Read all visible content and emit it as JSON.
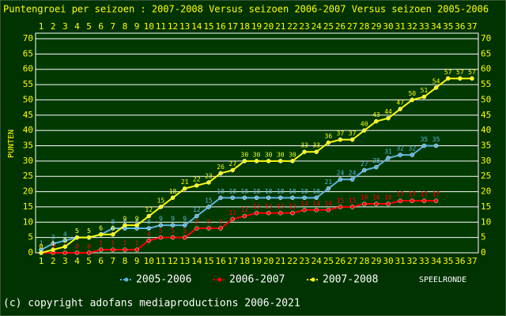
{
  "chart_data": {
    "type": "line",
    "title": "Puntengroei per seizoen : 2007-2008 Versus seizoen 2006-2007 Versus seizoen 2005-2006",
    "y_label": "PUNTEN",
    "x_label": "SPEELRONDE",
    "footer": "(c) copyright adofans mediaproductions 2006-2021",
    "categories": [
      "1",
      "2",
      "3",
      "4",
      "5",
      "6",
      "7",
      "8",
      "9",
      "10",
      "11",
      "12",
      "13",
      "14",
      "15",
      "16",
      "17",
      "18",
      "19",
      "20",
      "21",
      "22",
      "23",
      "24",
      "25",
      "26",
      "27",
      "28",
      "29",
      "30",
      "31",
      "32",
      "33",
      "34",
      "35",
      "36",
      "37"
    ],
    "series": [
      {
        "name": "2005-2006",
        "color": "#5bb4e5",
        "values": [
          1,
          3,
          4,
          5,
          5,
          6,
          8,
          8,
          8,
          8,
          9,
          9,
          9,
          12,
          15,
          18,
          18,
          18,
          18,
          18,
          18,
          18,
          18,
          18,
          21,
          24,
          24,
          27,
          28,
          31,
          32,
          32,
          35,
          35,
          null,
          null,
          null
        ]
      },
      {
        "name": "2006-2007",
        "color": "#ff0000",
        "values": [
          0,
          0,
          0,
          0,
          0,
          1,
          1,
          1,
          1,
          4,
          5,
          5,
          5,
          8,
          8,
          8,
          11,
          12,
          13,
          13,
          13,
          13,
          14,
          14,
          14,
          15,
          15,
          16,
          16,
          16,
          17,
          17,
          17,
          17,
          null,
          null,
          null
        ]
      },
      {
        "name": "2007-2008",
        "color": "#ffff00",
        "values": [
          0,
          1,
          2,
          5,
          5,
          6,
          6,
          9,
          9,
          12,
          15,
          18,
          21,
          22,
          23,
          26,
          27,
          30,
          30,
          30,
          30,
          30,
          33,
          33,
          36,
          37,
          37,
          40,
          43,
          44,
          47,
          50,
          51,
          54,
          57,
          57,
          57
        ]
      }
    ],
    "ylim": [
      0,
      70
    ],
    "yticks": [
      0,
      5,
      10,
      15,
      20,
      25,
      30,
      35,
      40,
      45,
      50,
      55,
      60,
      65,
      70
    ],
    "grid": true
  }
}
